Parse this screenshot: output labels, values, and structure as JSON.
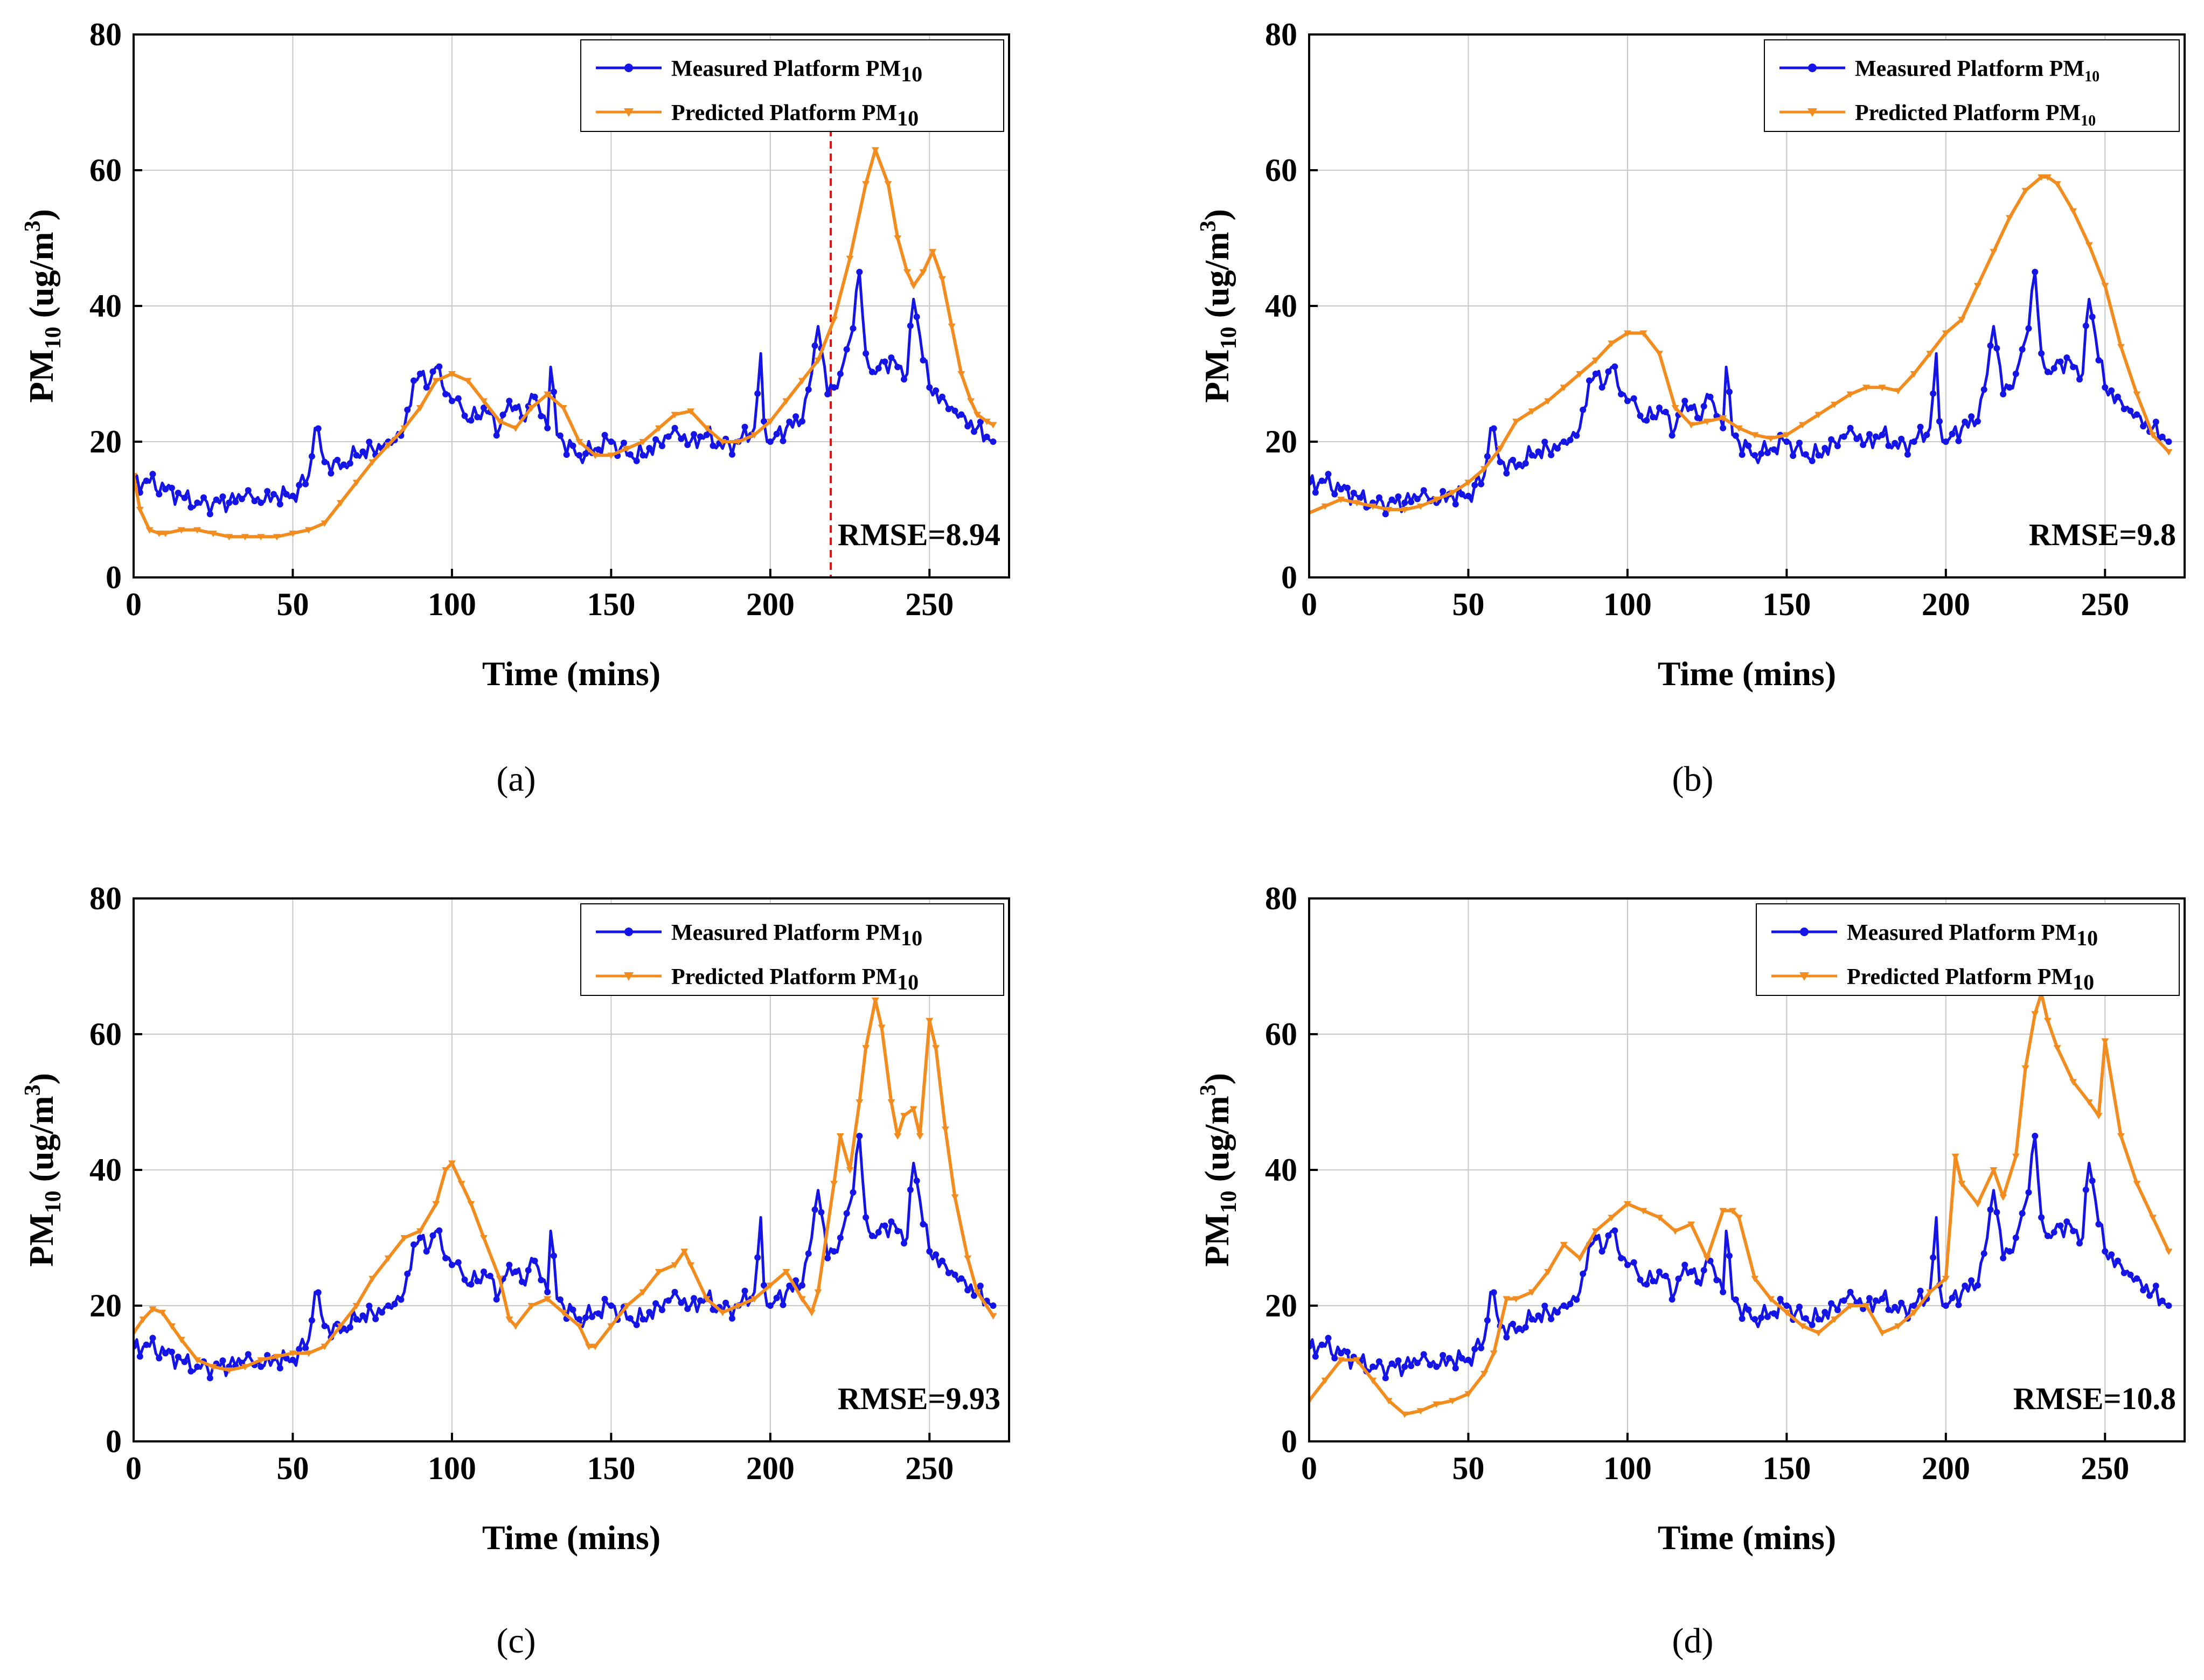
{
  "colors": {
    "measured": "#1414e6",
    "predicted": "#f28c1e",
    "divider": "#e01010",
    "grid": "#c8c8c8"
  },
  "measured_series": {
    "name": "Measured Platform PM10",
    "x": [
      0,
      5,
      10,
      15,
      20,
      25,
      30,
      35,
      40,
      45,
      50,
      55,
      57,
      60,
      65,
      70,
      75,
      80,
      85,
      88,
      90,
      92,
      95,
      98,
      100,
      103,
      105,
      110,
      115,
      118,
      120,
      123,
      125,
      130,
      131,
      133,
      135,
      140,
      145,
      150,
      155,
      160,
      165,
      170,
      175,
      180,
      185,
      190,
      195,
      197,
      198,
      200,
      205,
      210,
      213,
      215,
      218,
      220,
      222,
      225,
      228,
      230,
      233,
      235,
      240,
      243,
      245,
      250,
      255,
      260,
      265,
      270
    ],
    "y": [
      14,
      14,
      13,
      12,
      11,
      11,
      11,
      12,
      11,
      12,
      12,
      15,
      22,
      17,
      16,
      18,
      19,
      20,
      22,
      29,
      30,
      28,
      31,
      27,
      26,
      25,
      23,
      25,
      22,
      26,
      25,
      23,
      27,
      22,
      31,
      21,
      20,
      18,
      19,
      20,
      18,
      18,
      20,
      22,
      20,
      21,
      19,
      20,
      22,
      33,
      23,
      20,
      22,
      23,
      30,
      37,
      27,
      28,
      30,
      35,
      45,
      33,
      30,
      32,
      31,
      30,
      41,
      28,
      26,
      24,
      22,
      20
    ]
  },
  "chart_data": [
    {
      "panel": "(a)",
      "type": "line",
      "xlabel": "Time (mins)",
      "ylabel": "PM10 (ug/m3)",
      "xlim": [
        0,
        275
      ],
      "ylim": [
        0,
        80
      ],
      "xticks": [
        0,
        50,
        100,
        150,
        200,
        250
      ],
      "yticks": [
        0,
        20,
        40,
        60,
        80
      ],
      "legend": "top-right",
      "legend_style": "wide",
      "annotation": "RMSE=8.94",
      "divider_x": 219,
      "series": [
        {
          "name": "Measured Platform PM10",
          "ref": "measured"
        },
        {
          "name": "Predicted Platform PM10",
          "x": [
            0,
            2,
            5,
            8,
            10,
            15,
            20,
            25,
            30,
            35,
            40,
            45,
            50,
            55,
            60,
            65,
            70,
            75,
            80,
            85,
            90,
            95,
            100,
            105,
            110,
            115,
            120,
            125,
            130,
            135,
            140,
            145,
            150,
            155,
            160,
            165,
            170,
            175,
            180,
            185,
            190,
            195,
            200,
            205,
            210,
            215,
            220,
            225,
            230,
            233,
            237,
            240,
            243,
            245,
            248,
            251,
            254,
            257,
            260,
            263,
            265,
            268,
            270
          ],
          "y": [
            15,
            10,
            7,
            6.5,
            6.5,
            7,
            7,
            6.5,
            6,
            6,
            6,
            6,
            6.5,
            7,
            8,
            11,
            14,
            17,
            19.5,
            22,
            25,
            29,
            30,
            29,
            26,
            23,
            22,
            25,
            27,
            25,
            20,
            18,
            18,
            19,
            20,
            22,
            24,
            24.5,
            22,
            20,
            20,
            21,
            23,
            26,
            29,
            32,
            38,
            47,
            58,
            63,
            58,
            50,
            45,
            43,
            45,
            48,
            44,
            37,
            30,
            26,
            24,
            23,
            22.5
          ]
        }
      ]
    },
    {
      "panel": "(b)",
      "type": "line",
      "xlabel": "Time (mins)",
      "ylabel": "PM10 (ug/m3)",
      "xlim": [
        0,
        275
      ],
      "ylim": [
        0,
        80
      ],
      "xticks": [
        0,
        50,
        100,
        150,
        200,
        250
      ],
      "yticks": [
        0,
        20,
        40,
        60,
        80
      ],
      "legend": "top-right",
      "legend_style": "compact",
      "annotation": "RMSE=9.8",
      "series": [
        {
          "name": "Measured Platform PM10",
          "ref": "measured"
        },
        {
          "name": "Predicted Platform PM10",
          "x": [
            0,
            5,
            10,
            15,
            20,
            25,
            30,
            35,
            40,
            45,
            50,
            55,
            60,
            65,
            70,
            75,
            80,
            85,
            90,
            95,
            100,
            105,
            110,
            115,
            120,
            125,
            130,
            135,
            140,
            145,
            150,
            155,
            160,
            165,
            170,
            175,
            180,
            185,
            190,
            195,
            200,
            205,
            210,
            215,
            220,
            225,
            230,
            232,
            235,
            240,
            245,
            250,
            255,
            260,
            265,
            270
          ],
          "y": [
            9.5,
            10.5,
            11.5,
            11,
            10.5,
            10,
            10,
            10.5,
            11.5,
            12.5,
            14,
            16,
            19,
            23,
            24.5,
            26,
            28,
            30,
            32,
            34.5,
            36,
            36,
            33,
            25,
            22.5,
            23,
            23.5,
            22,
            21,
            20.5,
            21,
            22.5,
            24,
            25.5,
            27,
            28,
            28,
            27.5,
            30,
            33,
            36,
            38,
            43,
            48,
            53,
            57,
            59,
            59,
            58,
            54,
            49,
            43,
            34,
            27,
            21,
            18.5
          ]
        }
      ]
    },
    {
      "panel": "(c)",
      "type": "line",
      "xlabel": "Time (mins)",
      "ylabel": "PM10 (ug/m3)",
      "xlim": [
        0,
        275
      ],
      "ylim": [
        0,
        80
      ],
      "xticks": [
        0,
        50,
        100,
        150,
        200,
        250
      ],
      "yticks": [
        0,
        20,
        40,
        60,
        80
      ],
      "legend": "top-right",
      "legend_style": "wide",
      "annotation": "RMSE=9.93",
      "series": [
        {
          "name": "Measured Platform PM10",
          "ref": "measured"
        },
        {
          "name": "Predicted Platform PM10",
          "x": [
            0,
            3,
            6,
            9,
            12,
            15,
            20,
            25,
            30,
            35,
            40,
            45,
            50,
            55,
            60,
            65,
            70,
            75,
            80,
            85,
            90,
            95,
            98,
            100,
            103,
            106,
            110,
            115,
            118,
            120,
            125,
            130,
            135,
            140,
            143,
            145,
            150,
            155,
            160,
            165,
            170,
            173,
            175,
            180,
            185,
            190,
            195,
            200,
            205,
            210,
            213,
            215,
            220,
            222,
            225,
            228,
            230,
            233,
            235,
            238,
            240,
            242,
            245,
            247,
            250,
            252,
            255,
            258,
            262,
            265,
            270
          ],
          "y": [
            16,
            18,
            19.5,
            19,
            17,
            15,
            12,
            11,
            10.5,
            11,
            12,
            12.5,
            13,
            13,
            14,
            17,
            20,
            24,
            27,
            30,
            31,
            35,
            40,
            41,
            38,
            35,
            30,
            24,
            18,
            17,
            20,
            21,
            19,
            17,
            14,
            14,
            17,
            20,
            22,
            25,
            26,
            28,
            26,
            21,
            19,
            20,
            21,
            23,
            25,
            21,
            19,
            22,
            38,
            45,
            40,
            50,
            58,
            65,
            61,
            50,
            45,
            48,
            49,
            45,
            62,
            58,
            46,
            36,
            27,
            22,
            18.5
          ]
        }
      ]
    },
    {
      "panel": "(d)",
      "type": "line",
      "xlabel": "Time (mins)",
      "ylabel": "PM10 (ug/m3)",
      "xlim": [
        0,
        275
      ],
      "ylim": [
        0,
        80
      ],
      "xticks": [
        0,
        50,
        100,
        150,
        200,
        250
      ],
      "yticks": [
        0,
        20,
        40,
        60,
        80
      ],
      "legend": "top-right",
      "legend_style": "wide",
      "annotation": "RMSE=10.8",
      "series": [
        {
          "name": "Measured Platform PM10",
          "ref": "measured"
        },
        {
          "name": "Predicted Platform PM10",
          "x": [
            0,
            5,
            10,
            15,
            20,
            25,
            30,
            35,
            40,
            45,
            50,
            55,
            58,
            62,
            65,
            70,
            75,
            80,
            85,
            90,
            95,
            100,
            105,
            110,
            115,
            120,
            125,
            130,
            133,
            135,
            140,
            145,
            150,
            155,
            160,
            165,
            170,
            175,
            180,
            185,
            190,
            195,
            200,
            203,
            205,
            210,
            215,
            218,
            222,
            225,
            228,
            230,
            232,
            235,
            240,
            245,
            248,
            250,
            255,
            260,
            265,
            270
          ],
          "y": [
            6,
            9,
            12,
            12,
            9,
            6,
            4,
            4.5,
            5.5,
            6,
            7,
            10,
            13,
            21,
            21,
            22,
            25,
            29,
            27,
            31,
            33,
            35,
            34,
            33,
            31,
            32,
            27,
            34,
            34,
            33,
            24,
            21,
            19,
            17,
            16,
            18,
            20,
            20,
            16,
            17,
            19,
            22,
            24,
            42,
            38,
            35,
            40,
            36,
            42,
            55,
            63,
            66,
            62,
            58,
            53,
            50,
            48,
            59,
            45,
            38,
            33,
            28
          ]
        }
      ]
    }
  ],
  "panels": [
    {
      "label": "(a)",
      "xlabel": "Time (mins)",
      "ylabel_main": "PM",
      "ylabel_sub": "10",
      "ylabel_rest": " (ug/m",
      "ylabel_sup": "3",
      "ylabel_close": ")",
      "legend_measured_main": "Measured Platform PM",
      "legend_predicted_main": "Predicted Platform PM",
      "legend_sub": "10",
      "rmse": "RMSE=8.94",
      "xtick_labels": [
        "0",
        "50",
        "100",
        "150",
        "200",
        "250"
      ],
      "ytick_labels": [
        "0",
        "20",
        "40",
        "60",
        "80"
      ]
    },
    {
      "label": "(b)",
      "xlabel": "Time (mins)",
      "ylabel_main": "PM",
      "ylabel_sub": "10",
      "ylabel_rest": " (ug/m",
      "ylabel_sup": "3",
      "ylabel_close": ")",
      "legend_measured_main": "Measured Platform PM",
      "legend_predicted_main": "Predicted Platform PM",
      "legend_sub": "10",
      "rmse": "RMSE=9.8",
      "xtick_labels": [
        "0",
        "50",
        "100",
        "150",
        "200",
        "250"
      ],
      "ytick_labels": [
        "0",
        "20",
        "40",
        "60",
        "80"
      ]
    },
    {
      "label": "(c)",
      "xlabel": "Time (mins)",
      "ylabel_main": "PM",
      "ylabel_sub": "10",
      "ylabel_rest": " (ug/m",
      "ylabel_sup": "3",
      "ylabel_close": ")",
      "legend_measured_main": "Measured Platform PM",
      "legend_predicted_main": "Predicted Platform PM",
      "legend_sub": "10",
      "rmse": "RMSE=9.93",
      "xtick_labels": [
        "0",
        "50",
        "100",
        "150",
        "200",
        "250"
      ],
      "ytick_labels": [
        "0",
        "20",
        "40",
        "60",
        "80"
      ]
    },
    {
      "label": "(d)",
      "xlabel": "Time (mins)",
      "ylabel_main": "PM",
      "ylabel_sub": "10",
      "ylabel_rest": " (ug/m",
      "ylabel_sup": "3",
      "ylabel_close": ")",
      "legend_measured_main": "Measured Platform PM",
      "legend_predicted_main": "Predicted Platform PM",
      "legend_sub": "10",
      "rmse": "RMSE=10.8",
      "xtick_labels": [
        "0",
        "50",
        "100",
        "150",
        "200",
        "250"
      ],
      "ytick_labels": [
        "0",
        "20",
        "40",
        "60",
        "80"
      ]
    }
  ]
}
